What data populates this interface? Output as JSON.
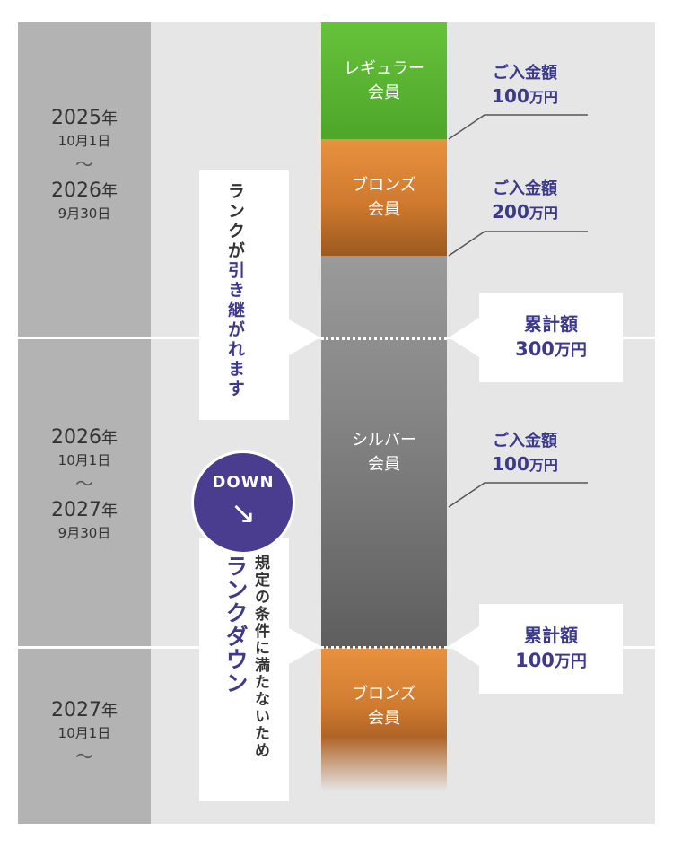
{
  "periods": [
    {
      "start_year": "2025",
      "year_unit": "年",
      "start_date": "10月1日",
      "tilde": "〜",
      "end_year": "2026",
      "end_date": "9月30日"
    },
    {
      "start_year": "2026",
      "year_unit": "年",
      "start_date": "10月1日",
      "tilde": "〜",
      "end_year": "2027",
      "end_date": "9月30日"
    },
    {
      "start_year": "2027",
      "year_unit": "年",
      "start_date": "10月1日",
      "tilde": "〜"
    }
  ],
  "ranks": {
    "regular": {
      "line1": "レギュラー",
      "line2": "会員",
      "color": "#5bb534"
    },
    "bronze1": {
      "line1": "ブロンズ",
      "line2": "会員",
      "color": "#d9822f"
    },
    "silver": {
      "line1": "シルバー",
      "line2": "会員",
      "color": "#7d7d7d"
    },
    "bronze2": {
      "line1": "ブロンズ",
      "line2": "会員",
      "color": "#d9822f"
    }
  },
  "deposits": [
    {
      "label": "ご入金額",
      "amount": "100",
      "unit": "万円"
    },
    {
      "label": "ご入金額",
      "amount": "200",
      "unit": "万円"
    },
    {
      "label": "ご入金額",
      "amount": "100",
      "unit": "万円"
    }
  ],
  "cumulative": [
    {
      "label": "累計額",
      "amount": "300",
      "unit": "万円"
    },
    {
      "label": "累計額",
      "amount": "100",
      "unit": "万円"
    }
  ],
  "carry_over": {
    "prefix": "ランクが",
    "highlight": "引き継がれます"
  },
  "down": {
    "badge": "DOWN",
    "arrow": "↘",
    "condition": "規定の条件に満たないため",
    "title": "ランクダウン"
  },
  "colors": {
    "accent": "#3d3a8c",
    "badge": "#4a3d8f",
    "panel": "#e6e6e6",
    "left_column": "#b3b3b3"
  }
}
